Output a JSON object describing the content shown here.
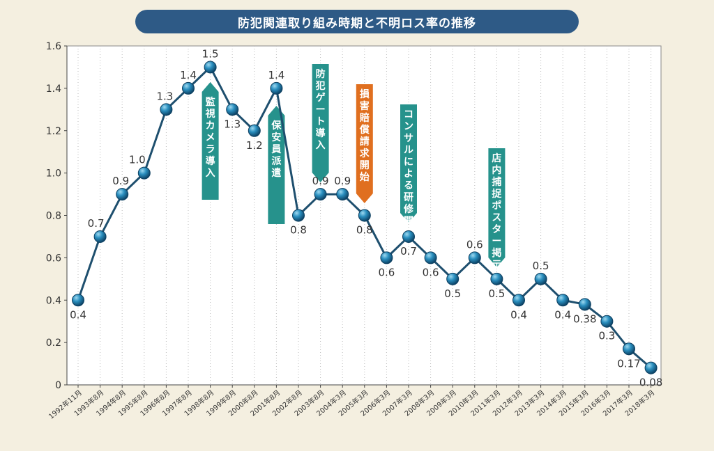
{
  "chart_data": {
    "type": "line",
    "title": "防犯関連取り組み時期と不明ロス率の推移",
    "categories": [
      "1992年11月",
      "1993年8月",
      "1994年8月",
      "1995年8月",
      "1996年8月",
      "1997年8月",
      "1998年8月",
      "1999年8月",
      "2000年8月",
      "2001年8月",
      "2002年8月",
      "2003年8月",
      "2004年3月",
      "2005年3月",
      "2006年3月",
      "2007年3月",
      "2008年3月",
      "2009年3月",
      "2010年3月",
      "2011年3月",
      "2012年3月",
      "2013年3月",
      "2014年3月",
      "2015年3月",
      "2016年3月",
      "2017年3月",
      "2018年3月"
    ],
    "values": [
      0.4,
      0.7,
      0.9,
      1.0,
      1.3,
      1.4,
      1.5,
      1.3,
      1.2,
      1.4,
      0.8,
      0.9,
      0.9,
      0.8,
      0.6,
      0.7,
      0.6,
      0.5,
      0.6,
      0.5,
      0.4,
      0.5,
      0.4,
      0.38,
      0.3,
      0.17,
      0.08
    ],
    "value_labels": [
      "0.4",
      "0.7",
      "0.9",
      "1.0",
      "1.3",
      "1.4",
      "1.5",
      "1.3",
      "1.2",
      "1.4",
      "0.8",
      "0.9",
      "0.9",
      "0.8",
      "0.6",
      "0.7",
      "0.6",
      "0.5",
      "0.6",
      "0.5",
      "0.4",
      "0.5",
      "0.4",
      "0.38",
      "0.3",
      "0.17",
      "0.08"
    ],
    "ylim": [
      0,
      1.6
    ],
    "yticks": [
      "0",
      "0.2",
      "0.4",
      "0.6",
      "0.8",
      "1.0",
      "1.2",
      "1.4",
      "1.6"
    ],
    "grid": "vertical-dotted",
    "highlight_category": "2005年3月",
    "annotations": [
      {
        "text": "監視カメラ導入",
        "category": "1998年8月",
        "direction": "up",
        "color": "#26928c"
      },
      {
        "text": "保安員派遣",
        "category": "2001年8月",
        "direction": "up",
        "color": "#26928c"
      },
      {
        "text": "防犯ゲート導入",
        "category": "2003年8月",
        "direction": "down",
        "color": "#26928c"
      },
      {
        "text": "損害賠償請求開始",
        "category": "2005年3月",
        "direction": "down",
        "color": "#e06f1f"
      },
      {
        "text": "コンサルによる研修開始",
        "category": "2007年3月",
        "direction": "down",
        "color": "#26928c"
      },
      {
        "text": "店内捕捉ポスター掲示",
        "category": "2011年3月",
        "direction": "down",
        "color": "#26928c"
      }
    ]
  },
  "colors": {
    "line": "#1e4f6e",
    "marker": "#1f7ea8",
    "title_bar": "#2e5a86",
    "highlight_tick": "#d7261e"
  }
}
